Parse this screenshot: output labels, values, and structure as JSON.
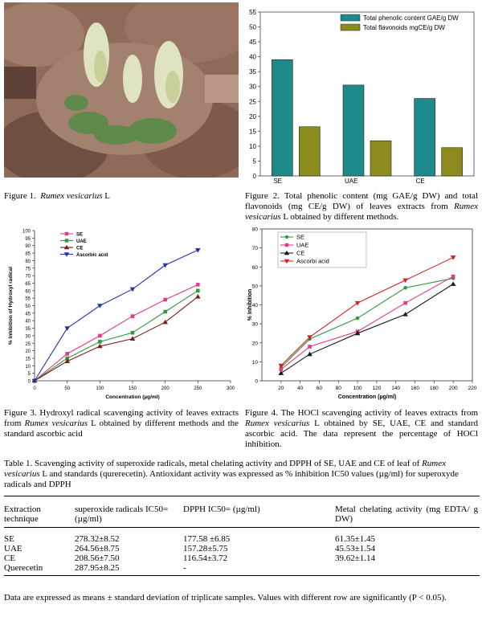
{
  "figure1": {
    "caption_prefix": "Figure 1.",
    "caption_species": "Rumex vesicarius",
    "caption_suffix": "L"
  },
  "figure2": {
    "caption": "Figure 2. Total phenolic content (mg GAE/g DW) and total flavonoids (mg CE/g DW) of leaves extracts from",
    "caption_species": "Rumex vesicarius",
    "caption_end": "L obtained by different methods."
  },
  "figure3": {
    "caption_a": "Figure 3. Hydroxyl radical scavenging activity of leaves extracts from",
    "caption_species": "Rumex vesicarius",
    "caption_b": "L obtained by different methods and the standard ascorbic acid"
  },
  "figure4": {
    "caption_a": "Figure 4. The HOCl scavenging activity of leaves extracts from",
    "caption_species": "Rumex vesicarius",
    "caption_b": "L obtained by SE, UAE, CE and standard ascorbic acid. The data represent the percentage of HOCl inhibition."
  },
  "table1": {
    "caption_a": "Table 1. Scavenging activity of superoxide radicals, metal chelating activity and DPPH of SE, UAE and CE of leaf of",
    "caption_species": "Rumex vesicarius",
    "caption_b": "L and standards (qurerecetin). Antioxidant activity was expressed as % inhibition IC50 values (µg/ml) for superoxyde radicals and DPPH",
    "headers": [
      "Extraction technique",
      "superoxide radicals IC50= (µg/ml)",
      "DPPH IC50= (µg/ml)",
      "Metal chelating activity (mg EDTA/ g DW)"
    ],
    "rows": [
      [
        "SE",
        "278.32±8.52",
        "177.58 ±6.85",
        "61.35±1.45"
      ],
      [
        "UAE",
        "264.56±8.75",
        "157.28±5.75",
        "45.53±1.54"
      ],
      [
        "CE",
        "208.56±7.50",
        "116.54±3.72",
        "39.62±1.14"
      ],
      [
        "Querecetin",
        "287.95±8.25",
        "-",
        ""
      ]
    ],
    "footnote": "Data are expressed as means ± standard deviation of triplicate samples. Values with different row are significantly (P < 0.05)."
  },
  "colors": {
    "teal": "#1f8a8a",
    "olive": "#8c8c1e",
    "pink": "#e2398a",
    "green": "#2e9a3e",
    "darkred": "#7a1c1c",
    "blue": "#2233a8",
    "red": "#d42020",
    "black": "#1a1a1a"
  },
  "chart_data": [
    {
      "type": "bar",
      "categories": [
        "SE",
        "UAE",
        "CE"
      ],
      "series": [
        {
          "name": "Total phenolic content GAE/g DW",
          "values": [
            39,
            30.5,
            26
          ]
        },
        {
          "name": "Total flavonoids mgCE/g DW",
          "values": [
            16.5,
            11.8,
            9.5
          ]
        }
      ],
      "ylim": [
        0,
        55
      ],
      "yticks": [
        0,
        5,
        10,
        15,
        20,
        25,
        30,
        35,
        40,
        45,
        50,
        55
      ],
      "legend": "top-right"
    },
    {
      "type": "line",
      "x": [
        0,
        50,
        100,
        150,
        200,
        250
      ],
      "series": [
        {
          "name": "SE",
          "values": [
            0,
            18,
            30,
            43,
            54,
            64
          ]
        },
        {
          "name": "UAE",
          "values": [
            0,
            15,
            26,
            32,
            46,
            60
          ]
        },
        {
          "name": "CE",
          "values": [
            0,
            13,
            23,
            28,
            39,
            56
          ]
        },
        {
          "name": "Ascorbic acid",
          "values": [
            0,
            35,
            50,
            61,
            77,
            87
          ]
        }
      ],
      "xlabel": "Concentration (µg/ml)",
      "ylabel": "% Inhibition of Hydroxyl radical",
      "xlim": [
        0,
        300
      ],
      "ylim": [
        0,
        100
      ],
      "xticks": [
        0,
        50,
        100,
        150,
        200,
        250,
        300
      ],
      "yticks": [
        0,
        5,
        10,
        15,
        20,
        25,
        30,
        35,
        40,
        45,
        50,
        55,
        60,
        65,
        70,
        75,
        80,
        85,
        90,
        95,
        100
      ],
      "legend": "top-left"
    },
    {
      "type": "line",
      "x": [
        20,
        50,
        100,
        150,
        200
      ],
      "series": [
        {
          "name": "SE",
          "values": [
            7,
            22,
            33,
            49,
            54
          ]
        },
        {
          "name": "UAE",
          "values": [
            6,
            18,
            26,
            41,
            55
          ]
        },
        {
          "name": "CE",
          "values": [
            4,
            14,
            25,
            35,
            51
          ]
        },
        {
          "name": "Ascorbi acid",
          "values": [
            8,
            23,
            41,
            53,
            65
          ]
        }
      ],
      "xlabel": "Concentration (µg/ml)",
      "ylabel": "% Inhibition",
      "xlim": [
        0,
        220
      ],
      "ylim": [
        0,
        80
      ],
      "xticks": [
        20,
        40,
        60,
        80,
        100,
        120,
        140,
        160,
        180,
        200,
        220
      ],
      "yticks": [
        0,
        10,
        20,
        30,
        40,
        50,
        60,
        70,
        80
      ],
      "legend": "top-left"
    }
  ]
}
